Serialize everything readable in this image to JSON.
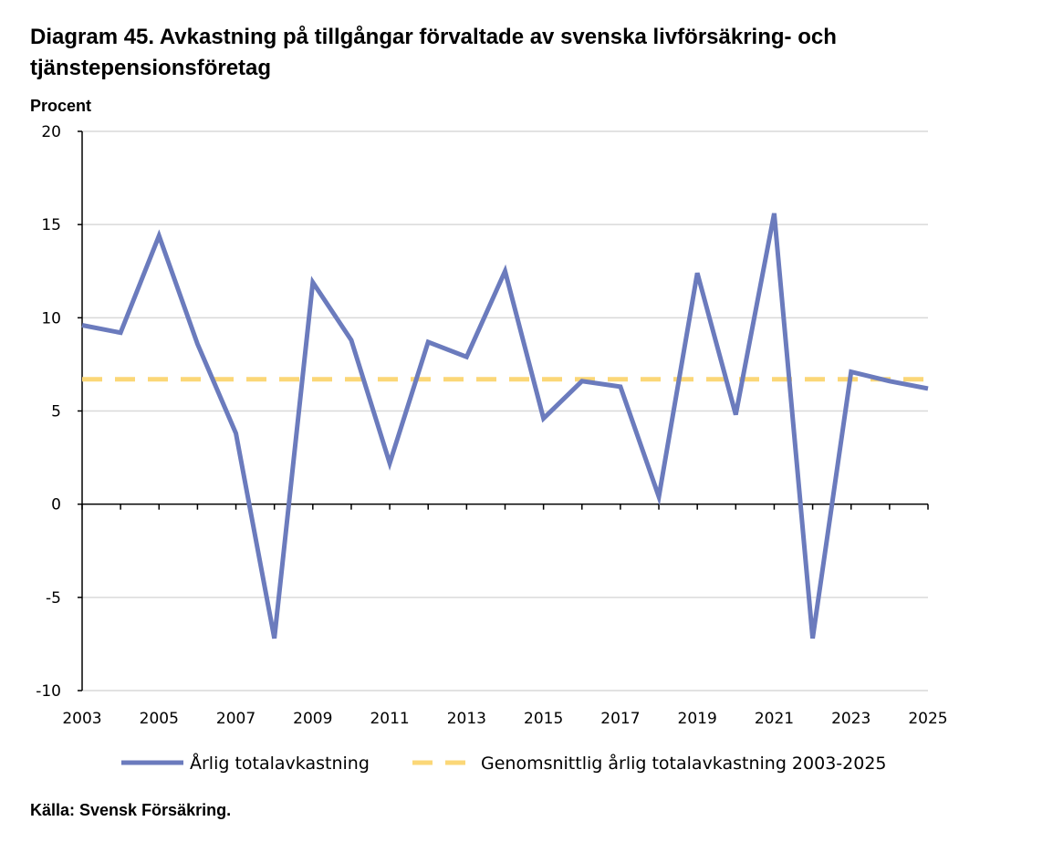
{
  "title": "Diagram 45. Avkastning på tillgångar förvaltade av svenska livförsäkring- och tjänstepensionsföretag",
  "source": "Källa: Svensk Försäkring.",
  "colors": {
    "series": "#6b7bbd",
    "average": "#fbd777",
    "grid": "#d9d9d9",
    "axis": "#000000"
  },
  "chart_data": {
    "type": "line",
    "title": "Diagram 45. Avkastning på tillgångar förvaltade av svenska livförsäkring- och tjänstepensionsföretag",
    "ylabel": "Procent",
    "xlabel": "",
    "ylim": [
      -10,
      20
    ],
    "yticks": [
      -10,
      -5,
      0,
      5,
      10,
      15,
      20
    ],
    "xlim": [
      2003,
      2025
    ],
    "xticks": [
      2003,
      2005,
      2007,
      2009,
      2011,
      2013,
      2015,
      2017,
      2019,
      2021,
      2023,
      2025
    ],
    "grid": true,
    "legend_position": "bottom",
    "series": [
      {
        "name": "Årlig totalavkastning",
        "style": "solid",
        "x": [
          2003,
          2004,
          2005,
          2006,
          2007,
          2008,
          2009,
          2010,
          2011,
          2012,
          2013,
          2014,
          2015,
          2016,
          2017,
          2018,
          2019,
          2020,
          2021,
          2022,
          2023,
          2024,
          2025
        ],
        "values": [
          9.6,
          9.2,
          14.4,
          8.6,
          3.8,
          -7.2,
          11.9,
          8.8,
          2.2,
          8.7,
          7.9,
          12.5,
          4.6,
          6.6,
          6.3,
          0.4,
          12.4,
          4.8,
          15.6,
          -7.2,
          7.1,
          6.6,
          6.2
        ]
      },
      {
        "name": "Genomsnittlig årlig totalavkastning 2003-2025",
        "style": "dashed",
        "x": [
          2003,
          2025
        ],
        "values": [
          6.7,
          6.7
        ]
      }
    ]
  }
}
